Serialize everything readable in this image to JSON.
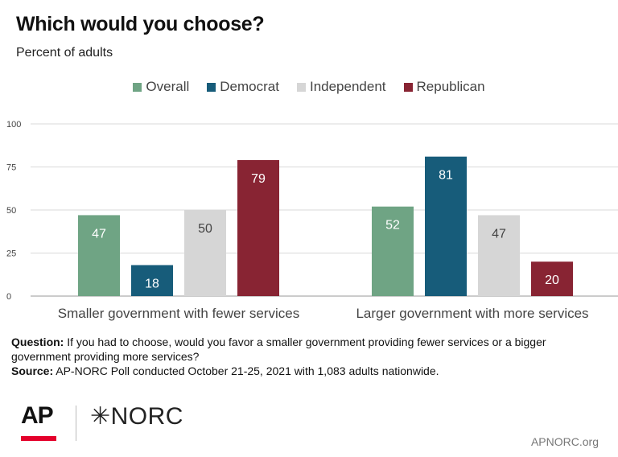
{
  "header": {
    "title": "Which would you choose?",
    "subtitle": "Percent of adults"
  },
  "notes": {
    "question_label": "Question:",
    "question_text": "If you had to choose, would you favor a smaller government providing fewer services or a bigger government providing more services?",
    "source_label": "Source:",
    "source_text": "AP-NORC Poll conducted October 21-25, 2021 with 1,083 adults nationwide."
  },
  "footer": {
    "logo_ap": "AP",
    "logo_norc": "✳NORC",
    "site": "APNORC.org",
    "ap_red": "#e4002b"
  },
  "chart_data": {
    "type": "bar",
    "title": "Which would you choose?",
    "subtitle": "Percent of adults",
    "categories": [
      "Smaller government with fewer services",
      "Larger government with more services"
    ],
    "series": [
      {
        "name": "Overall",
        "color": "#6fa484",
        "values": [
          47,
          52
        ]
      },
      {
        "name": "Democrat",
        "color": "#175c7a",
        "values": [
          18,
          81
        ]
      },
      {
        "name": "Independent",
        "color": "#d6d6d6",
        "values": [
          50,
          47
        ]
      },
      {
        "name": "Republican",
        "color": "#882433",
        "values": [
          79,
          20
        ]
      }
    ],
    "ylim": [
      0,
      100
    ],
    "yticks": [
      0,
      25,
      50,
      75,
      100
    ],
    "grid": true,
    "legend_position": "top-center",
    "data_labels": true
  }
}
